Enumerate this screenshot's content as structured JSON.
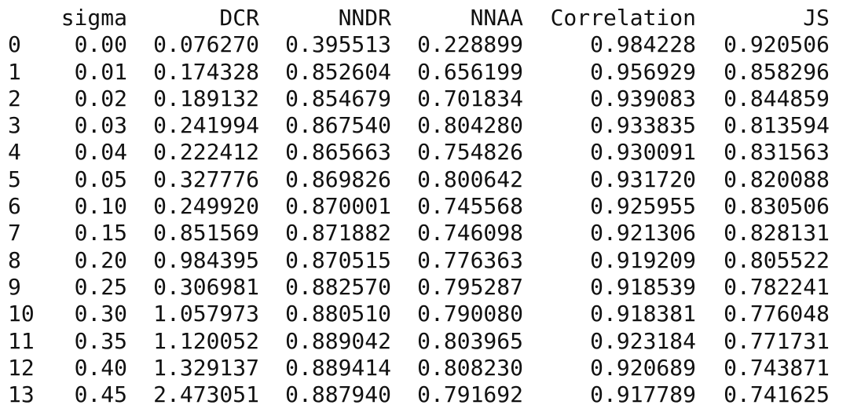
{
  "columns": [
    "",
    "sigma",
    "DCR",
    "NNDR",
    "NNAA",
    "Correlation",
    "JS"
  ],
  "rows": [
    [
      "0",
      "0.00",
      "0.076270",
      "0.395513",
      "0.228899",
      "0.984228",
      "0.920506"
    ],
    [
      "1",
      "0.01",
      "0.174328",
      "0.852604",
      "0.656199",
      "0.956929",
      "0.858296"
    ],
    [
      "2",
      "0.02",
      "0.189132",
      "0.854679",
      "0.701834",
      "0.939083",
      "0.844859"
    ],
    [
      "3",
      "0.03",
      "0.241994",
      "0.867540",
      "0.804280",
      "0.933835",
      "0.813594"
    ],
    [
      "4",
      "0.04",
      "0.222412",
      "0.865663",
      "0.754826",
      "0.930091",
      "0.831563"
    ],
    [
      "5",
      "0.05",
      "0.327776",
      "0.869826",
      "0.800642",
      "0.931720",
      "0.820088"
    ],
    [
      "6",
      "0.10",
      "0.249920",
      "0.870001",
      "0.745568",
      "0.925955",
      "0.830506"
    ],
    [
      "7",
      "0.15",
      "0.851569",
      "0.871882",
      "0.746098",
      "0.921306",
      "0.828131"
    ],
    [
      "8",
      "0.20",
      "0.984395",
      "0.870515",
      "0.776363",
      "0.919209",
      "0.805522"
    ],
    [
      "9",
      "0.25",
      "0.306981",
      "0.882570",
      "0.795287",
      "0.918539",
      "0.782241"
    ],
    [
      "10",
      "0.30",
      "1.057973",
      "0.880510",
      "0.790080",
      "0.918381",
      "0.776048"
    ],
    [
      "11",
      "0.35",
      "1.120052",
      "0.889042",
      "0.803965",
      "0.923184",
      "0.771731"
    ],
    [
      "12",
      "0.40",
      "1.329137",
      "0.889414",
      "0.808230",
      "0.920689",
      "0.743871"
    ],
    [
      "13",
      "0.45",
      "2.473051",
      "0.887940",
      "0.791692",
      "0.917789",
      "0.741625"
    ]
  ]
}
